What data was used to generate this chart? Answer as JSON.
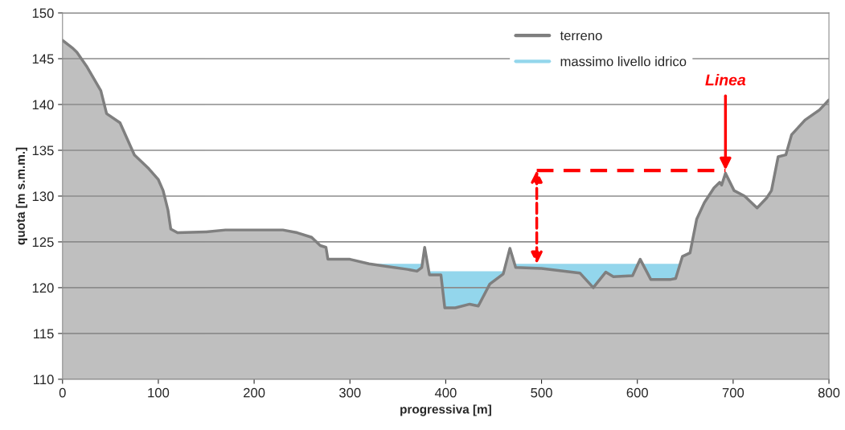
{
  "chart_data": {
    "type": "area",
    "xlabel": "progressiva [m]",
    "ylabel": "quota [m s.m.m.]",
    "xlim": [
      0,
      800
    ],
    "xticks": [
      0,
      100,
      200,
      300,
      400,
      500,
      600,
      700,
      800
    ],
    "ylim": [
      110,
      150
    ],
    "yticks": [
      110,
      115,
      120,
      125,
      130,
      135,
      140,
      145,
      150
    ],
    "grid": "y",
    "legend": "top right",
    "series": [
      {
        "name": "terreno",
        "color": "#7f7f7f",
        "x": [
          0,
          10,
          15,
          25,
          40,
          46,
          60,
          75,
          90,
          100,
          105,
          110,
          113,
          120,
          150,
          170,
          230,
          245,
          260,
          269,
          275,
          277,
          300,
          320,
          340,
          360,
          370,
          375,
          378,
          383,
          395,
          399,
          410,
          425,
          434,
          446,
          460,
          467,
          473,
          500,
          540,
          554,
          567,
          575,
          595,
          603,
          614,
          635,
          640,
          647,
          655,
          662,
          670,
          680,
          686,
          688,
          692,
          701,
          712,
          725,
          735,
          740,
          747,
          755,
          761,
          775,
          790,
          800
        ],
        "values": [
          147.0,
          146.2,
          145.7,
          144.2,
          141.5,
          139.0,
          138.0,
          134.5,
          133.0,
          131.8,
          130.6,
          128.5,
          126.4,
          126.0,
          126.1,
          126.3,
          126.3,
          126.0,
          125.5,
          124.6,
          124.4,
          123.1,
          123.1,
          122.6,
          122.3,
          122.0,
          121.8,
          122.2,
          124.4,
          121.4,
          121.4,
          117.8,
          117.8,
          118.2,
          118.0,
          120.4,
          121.5,
          124.3,
          122.2,
          122.1,
          121.6,
          120.0,
          121.7,
          121.2,
          121.3,
          123.1,
          120.9,
          120.9,
          121.0,
          123.4,
          123.8,
          127.5,
          129.3,
          130.9,
          131.5,
          131.2,
          132.5,
          130.6,
          130.0,
          128.7,
          129.8,
          130.6,
          134.3,
          134.5,
          136.7,
          138.3,
          139.4,
          140.5
        ]
      },
      {
        "name": "massimo livello idrico",
        "color": "#93d6ec",
        "x": [
          321,
          375.5,
          376,
          382.3,
          460.8,
          461,
          471.9,
          644.7
        ],
        "values": [
          122.6,
          122.6,
          null,
          121.8,
          121.8,
          null,
          122.6,
          122.6
        ]
      },
      {
        "type": "line",
        "color": "#ff0000",
        "line_style": "dashed",
        "x": [
          495,
          692
        ],
        "values": [
          132.8,
          132.8
        ]
      }
    ],
    "annotations": [
      {
        "text": "Linea",
        "x": 692,
        "y": 132.6
      }
    ]
  }
}
